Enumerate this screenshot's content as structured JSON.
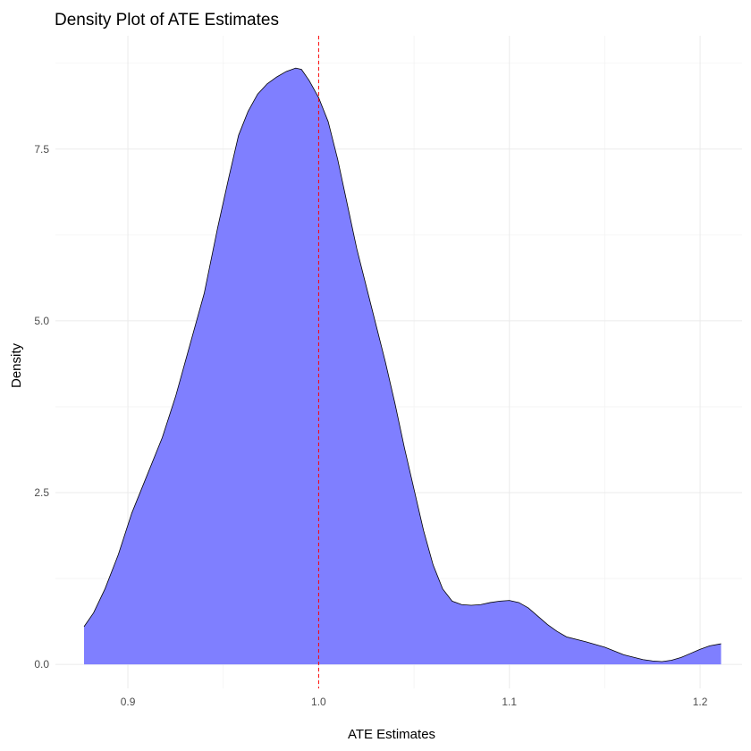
{
  "chart_data": {
    "type": "area",
    "title": "Density Plot of ATE Estimates",
    "xlabel": "ATE Estimates",
    "ylabel": "Density",
    "xlim": [
      0.862,
      1.222
    ],
    "ylim": [
      -0.35,
      9.15
    ],
    "x_ticks": [
      0.9,
      1.0,
      1.1,
      1.2
    ],
    "x_tick_labels": [
      "0.9",
      "1.0",
      "1.1",
      "1.2"
    ],
    "y_ticks": [
      0.0,
      2.5,
      5.0,
      7.5
    ],
    "y_tick_labels": [
      "0.0",
      "2.5",
      "5.0",
      "7.5"
    ],
    "grid": true,
    "reference_line": {
      "x": 1.0,
      "color": "#ff0000",
      "style": "dashed"
    },
    "fill_color": "#7f7fff",
    "line_color": "#000000",
    "series": [
      {
        "x": [
          0.877,
          0.882,
          0.888,
          0.895,
          0.902,
          0.91,
          0.918,
          0.925,
          0.932,
          0.94,
          0.947,
          0.953,
          0.958,
          0.963,
          0.968,
          0.973,
          0.978,
          0.983,
          0.988,
          0.991,
          0.995,
          1.0,
          1.005,
          1.01,
          1.015,
          1.02,
          1.025,
          1.03,
          1.035,
          1.04,
          1.045,
          1.05,
          1.055,
          1.06,
          1.065,
          1.07,
          1.075,
          1.08,
          1.085,
          1.09,
          1.095,
          1.1,
          1.105,
          1.11,
          1.115,
          1.12,
          1.125,
          1.13,
          1.14,
          1.15,
          1.16,
          1.17,
          1.175,
          1.18,
          1.185,
          1.19,
          1.195,
          1.2,
          1.205,
          1.211
        ],
        "y": [
          0.55,
          0.75,
          1.1,
          1.6,
          2.2,
          2.75,
          3.3,
          3.9,
          4.6,
          5.4,
          6.35,
          7.1,
          7.7,
          8.05,
          8.3,
          8.45,
          8.55,
          8.63,
          8.68,
          8.66,
          8.5,
          8.25,
          7.9,
          7.35,
          6.7,
          6.05,
          5.5,
          4.95,
          4.4,
          3.8,
          3.15,
          2.55,
          1.95,
          1.45,
          1.1,
          0.92,
          0.87,
          0.86,
          0.87,
          0.9,
          0.92,
          0.93,
          0.9,
          0.82,
          0.7,
          0.58,
          0.48,
          0.4,
          0.33,
          0.25,
          0.14,
          0.07,
          0.05,
          0.04,
          0.06,
          0.1,
          0.16,
          0.22,
          0.27,
          0.3
        ]
      }
    ]
  }
}
